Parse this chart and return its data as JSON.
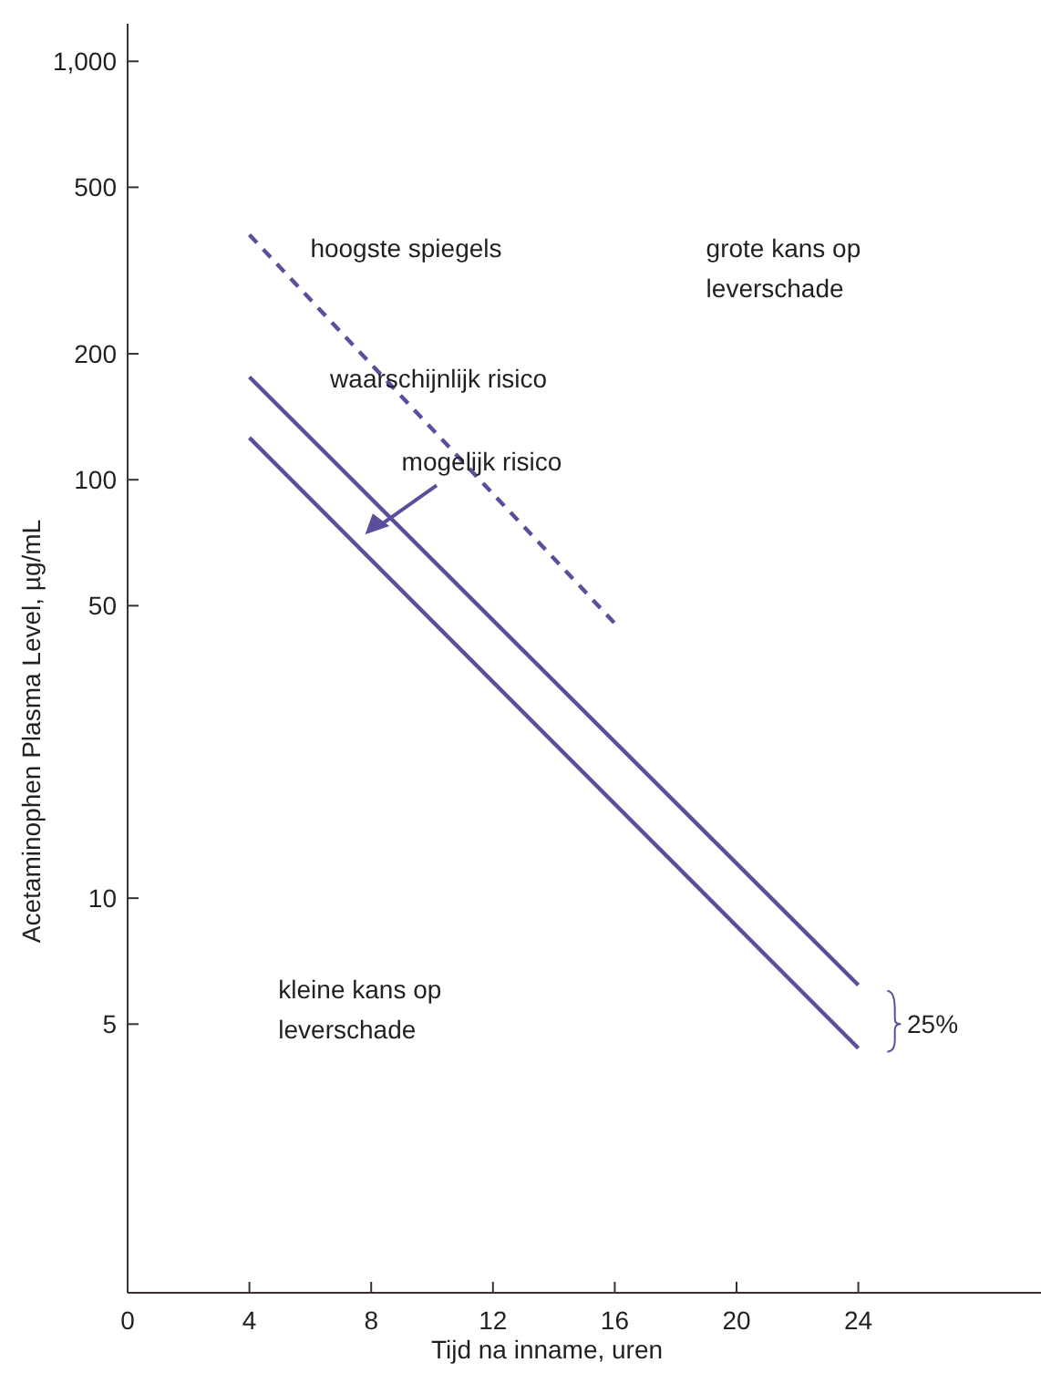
{
  "chart_data": {
    "type": "line",
    "xlabel": "Tijd na inname, uren",
    "ylabel": "Acetaminophen Plasma Level, µg/mL",
    "log": true,
    "xlim": [
      0,
      30
    ],
    "xticks": [
      0,
      4,
      8,
      12,
      16,
      20,
      24
    ],
    "ylim": [
      1.14,
      1230
    ],
    "yticks": [
      5,
      10,
      50,
      100,
      200,
      500,
      {
        "value": 1000,
        "label": "1,000"
      }
    ],
    "series": [
      {
        "color": "#5b4e9b",
        "x": [
          4,
          16
        ],
        "values": [
          385,
          45.4
        ],
        "line_style": "dashed"
      },
      {
        "color": "#5b4e9b",
        "x": [
          4,
          24
        ],
        "values": [
          176,
          6.2
        ],
        "line_style": "solid"
      },
      {
        "color": "#5b4e9b",
        "x": [
          4,
          24
        ],
        "values": [
          126,
          4.38
        ],
        "line_style": "solid"
      }
    ],
    "annotations": [
      "hoogste spiegels",
      "grote kans op\nleverschade",
      "waarschijnlijk risico",
      "mogelijk risico",
      "kleine kans op\nleverschade",
      "25%"
    ]
  }
}
